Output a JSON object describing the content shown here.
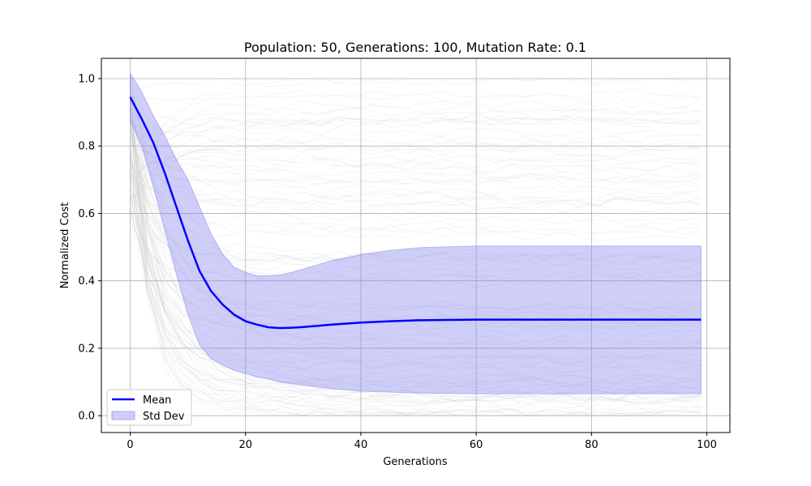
{
  "chart_data": {
    "type": "line",
    "title": "Population: 50, Generations: 100, Mutation Rate: 0.1",
    "xlabel": "Generations",
    "ylabel": "Normalized Cost",
    "xlim": [
      -5,
      104
    ],
    "ylim": [
      -0.05,
      1.06
    ],
    "xticks": [
      0,
      20,
      40,
      60,
      80,
      100
    ],
    "yticks": [
      0.0,
      0.2,
      0.4,
      0.6,
      0.8,
      1.0
    ],
    "xtick_labels": [
      "0",
      "20",
      "40",
      "60",
      "80",
      "100"
    ],
    "ytick_labels": [
      "0.0",
      "0.2",
      "0.4",
      "0.6",
      "0.8",
      "1.0"
    ],
    "grid": true,
    "legend_position": "lower-left",
    "colors": {
      "mean": "#0000ff",
      "std_fill": "#8080ee",
      "background_runs": "#c8c8c8"
    },
    "series": [
      {
        "name": "Mean",
        "x": [
          0,
          2,
          4,
          6,
          8,
          10,
          12,
          14,
          16,
          18,
          20,
          22,
          24,
          26,
          28,
          30,
          35,
          40,
          45,
          50,
          60,
          70,
          80,
          90,
          99
        ],
        "y": [
          0.945,
          0.88,
          0.81,
          0.72,
          0.62,
          0.52,
          0.43,
          0.37,
          0.33,
          0.3,
          0.28,
          0.27,
          0.262,
          0.26,
          0.261,
          0.263,
          0.27,
          0.276,
          0.28,
          0.283,
          0.285,
          0.285,
          0.285,
          0.285,
          0.285
        ]
      },
      {
        "name": "Std Dev",
        "x": [
          0,
          2,
          4,
          6,
          8,
          10,
          12,
          14,
          16,
          18,
          20,
          22,
          24,
          26,
          28,
          30,
          35,
          40,
          45,
          50,
          60,
          70,
          80,
          90,
          99
        ],
        "lower": [
          0.875,
          0.8,
          0.68,
          0.55,
          0.42,
          0.3,
          0.21,
          0.17,
          0.15,
          0.135,
          0.125,
          0.115,
          0.11,
          0.1,
          0.095,
          0.09,
          0.08,
          0.073,
          0.07,
          0.067,
          0.065,
          0.065,
          0.065,
          0.065,
          0.065
        ],
        "upper": [
          1.015,
          0.96,
          0.89,
          0.83,
          0.76,
          0.7,
          0.62,
          0.54,
          0.48,
          0.44,
          0.425,
          0.415,
          0.415,
          0.418,
          0.425,
          0.435,
          0.46,
          0.478,
          0.49,
          0.498,
          0.503,
          0.503,
          0.503,
          0.503,
          0.503
        ]
      }
    ],
    "legend": [
      {
        "label": "Mean",
        "kind": "line"
      },
      {
        "label": "Std Dev",
        "kind": "patch"
      }
    ]
  }
}
